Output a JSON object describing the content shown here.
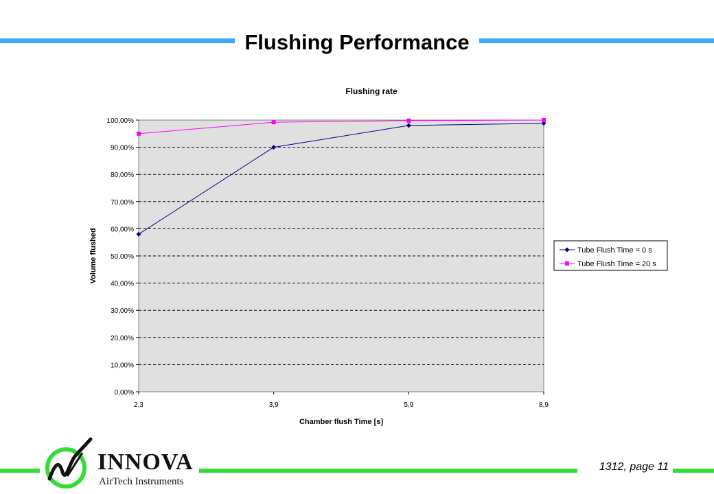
{
  "slide": {
    "title": "Flushing Performance",
    "page_label": "1312, page 11"
  },
  "logo": {
    "name": "INNOVA",
    "tagline": "AirTech Instruments"
  },
  "colors": {
    "title_bar": "#3fa9f5",
    "footer_bar": "#33dd33",
    "plot_bg": "#e0e0e0",
    "series1": "#000080",
    "series2": "#ff00ff"
  },
  "chart_data": {
    "type": "line",
    "title": "Flushing rate",
    "xlabel": "Chamber flush Time [s]",
    "ylabel": "Volume flushed",
    "categories": [
      "2,3",
      "3,9",
      "5,9",
      "8,9"
    ],
    "ylim": [
      0,
      100
    ],
    "yticks": [
      "0,00%",
      "10,00%",
      "20,00%",
      "30,00%",
      "40,00%",
      "50,00%",
      "60,00%",
      "70,00%",
      "80,00%",
      "90,00%",
      "100,00%"
    ],
    "grid": true,
    "legend_position": "right",
    "series": [
      {
        "name": "Tube Flush Time = 0 s",
        "values": [
          58,
          90,
          98,
          98.8
        ],
        "marker": "diamond"
      },
      {
        "name": "Tube Flush Time = 20 s",
        "values": [
          95,
          99.2,
          99.8,
          100
        ],
        "marker": "square"
      }
    ]
  }
}
